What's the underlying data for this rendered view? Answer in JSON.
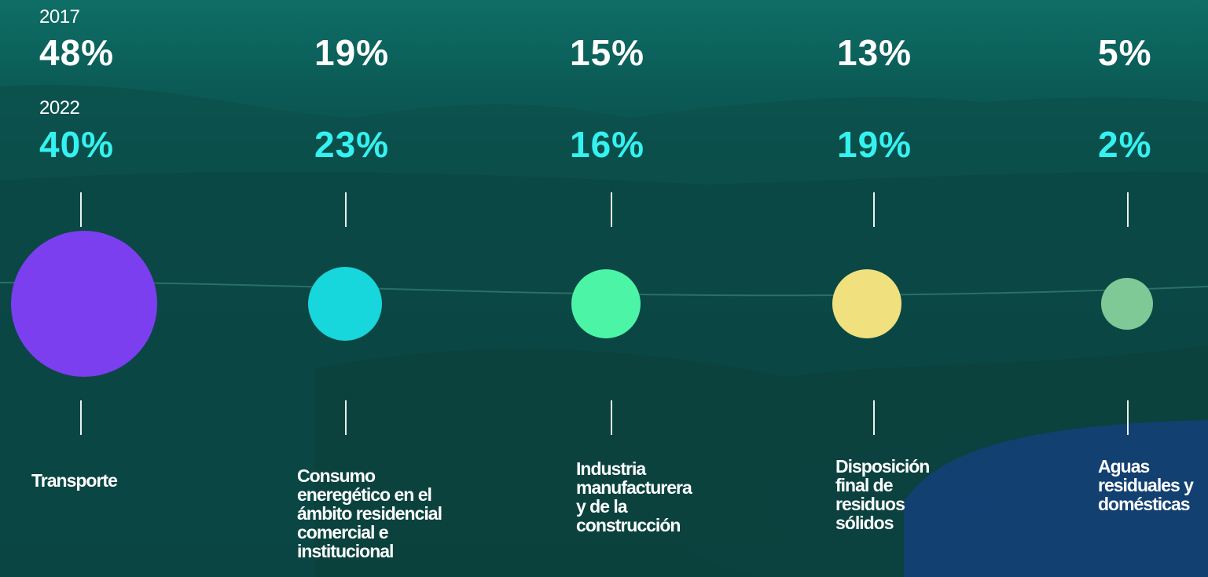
{
  "years": [
    "2017",
    "2022"
  ],
  "sectors": [
    {
      "pct_2017": "48%",
      "pct_2022": "40%",
      "label": [
        "Transporte"
      ]
    },
    {
      "pct_2017": "19%",
      "pct_2022": "23%",
      "label": [
        "Consumo",
        "eneregético en el",
        "ámbito residencial",
        "comercial e",
        "institucional"
      ]
    },
    {
      "pct_2017": "15%",
      "pct_2022": "16%",
      "label": [
        "Industria",
        "manufacturera",
        "y de la",
        "construcción"
      ]
    },
    {
      "pct_2017": "13%",
      "pct_2022": "19%",
      "label": [
        "Disposición",
        "final de",
        "residuos",
        "sólidos"
      ]
    },
    {
      "pct_2017": "5%",
      "pct_2022": "2%",
      "label": [
        "Aguas",
        "residuales y",
        "domésticas"
      ]
    }
  ]
}
